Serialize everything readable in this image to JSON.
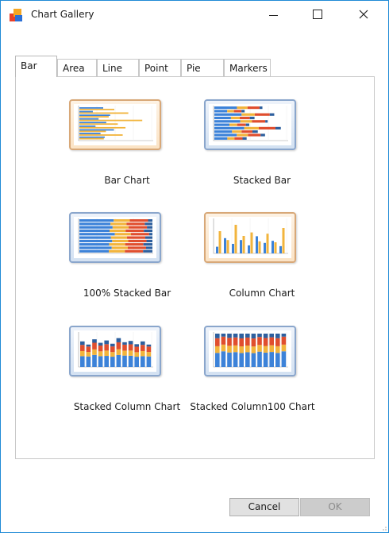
{
  "window": {
    "title": "Chart Gallery",
    "icons": [
      "app-logo-icon",
      "minimize-icon",
      "maximize-icon",
      "close-icon"
    ],
    "accent": "#1f8ad6"
  },
  "tabs": [
    {
      "label": "Bar",
      "active": true
    },
    {
      "label": "Area",
      "active": false
    },
    {
      "label": "Line",
      "active": false
    },
    {
      "label": "Point",
      "active": false
    },
    {
      "label": "Pie",
      "active": false
    },
    {
      "label": "Markers",
      "active": false
    }
  ],
  "gallery": {
    "items": [
      {
        "label": "Bar Chart",
        "style": "warm"
      },
      {
        "label": "Stacked Bar",
        "style": "cool"
      },
      {
        "label": "100% Stacked Bar",
        "style": "cool"
      },
      {
        "label": "Column Chart",
        "style": "warm"
      },
      {
        "label": "Stacked Column Chart",
        "style": "cool"
      },
      {
        "label": "Stacked Column100 Chart",
        "style": "cool"
      }
    ],
    "series_colors": [
      "#3c82d8",
      "#f2b43c",
      "#e04e2e",
      "#2d5f9e"
    ]
  },
  "buttons": {
    "cancel": "Cancel",
    "ok": "OK"
  }
}
